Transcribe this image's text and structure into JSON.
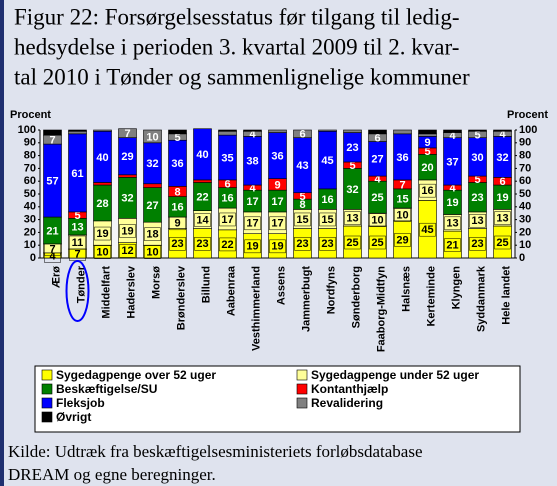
{
  "chart_data": {
    "type": "stacked_bar",
    "title": [
      "Figur 22: Forsørgelsesstatus før tilgang til ledig-",
      "hedsydelse i perioden 3. kvartal 2009 til 2. kvar-",
      "tal 2010 i Tønder og sammenlignelige kommuner"
    ],
    "y_label": "Procent",
    "y2_label": "Procent",
    "categories": [
      "Ærø",
      "Tønder",
      "Middelfart",
      "Haderslev",
      "Morsø",
      "Brønderslev",
      "Billund",
      "Aabenraa",
      "Vesthimmerland",
      "Assens",
      "Jammerbugt",
      "Nordfyns",
      "Sønderborg",
      "Faaborg-Midtfyn",
      "Halsnæs",
      "Kerteminde",
      "Klyngen",
      "Syddanmark",
      "Hele landet"
    ],
    "highlight": "Tønder",
    "series": [
      {
        "name": "Sygedagpenge over 52 uger",
        "color": "#ffff00",
        "values": [
          4,
          7,
          10,
          12,
          10,
          23,
          23,
          22,
          19,
          19,
          23,
          23,
          25,
          25,
          29,
          45,
          21,
          23,
          25
        ]
      },
      {
        "name": "Sygedagpenge under 52 uger",
        "color": "#ffff99",
        "values": [
          7,
          11,
          19,
          19,
          18,
          9,
          14,
          17,
          17,
          17,
          15,
          15,
          13,
          10,
          10,
          16,
          13,
          13,
          13
        ]
      },
      {
        "name": "Beskæftigelse/SU",
        "color": "#008000",
        "values": [
          21,
          13,
          28,
          32,
          27,
          16,
          22,
          16,
          17,
          17,
          8,
          16,
          32,
          25,
          15,
          20,
          19,
          23,
          19
        ]
      },
      {
        "name": "Kontanthjælp",
        "color": "#ff0000",
        "values": [
          0,
          5,
          2,
          2,
          3,
          8,
          2,
          6,
          4,
          9,
          5,
          0,
          5,
          4,
          7,
          5,
          4,
          5,
          6
        ]
      },
      {
        "name": "Fleksjob",
        "color": "#0000ff",
        "values": [
          57,
          61,
          40,
          29,
          32,
          36,
          40,
          35,
          38,
          36,
          43,
          45,
          23,
          27,
          36,
          9,
          37,
          30,
          32
        ]
      },
      {
        "name": "Revalidering",
        "color": "#808080",
        "values": [
          7,
          2,
          1,
          7,
          10,
          5,
          0,
          3,
          4,
          2,
          6,
          1,
          2,
          6,
          3,
          2,
          4,
          5,
          4
        ]
      },
      {
        "name": "Øvrigt",
        "color": "#000000",
        "values": [
          4,
          1,
          0,
          0,
          0,
          3,
          0,
          1,
          1,
          0,
          0,
          0,
          0,
          3,
          0,
          3,
          2,
          1,
          1
        ]
      }
    ],
    "ylim": [
      0,
      100
    ],
    "yticks": [
      0,
      10,
      20,
      30,
      40,
      50,
      60,
      70,
      80,
      90,
      100
    ],
    "source": [
      "Kilde: Udtræk fra beskæftigelsesministeriets forløbsdatabase",
      "DREAM og egne beregninger."
    ]
  }
}
